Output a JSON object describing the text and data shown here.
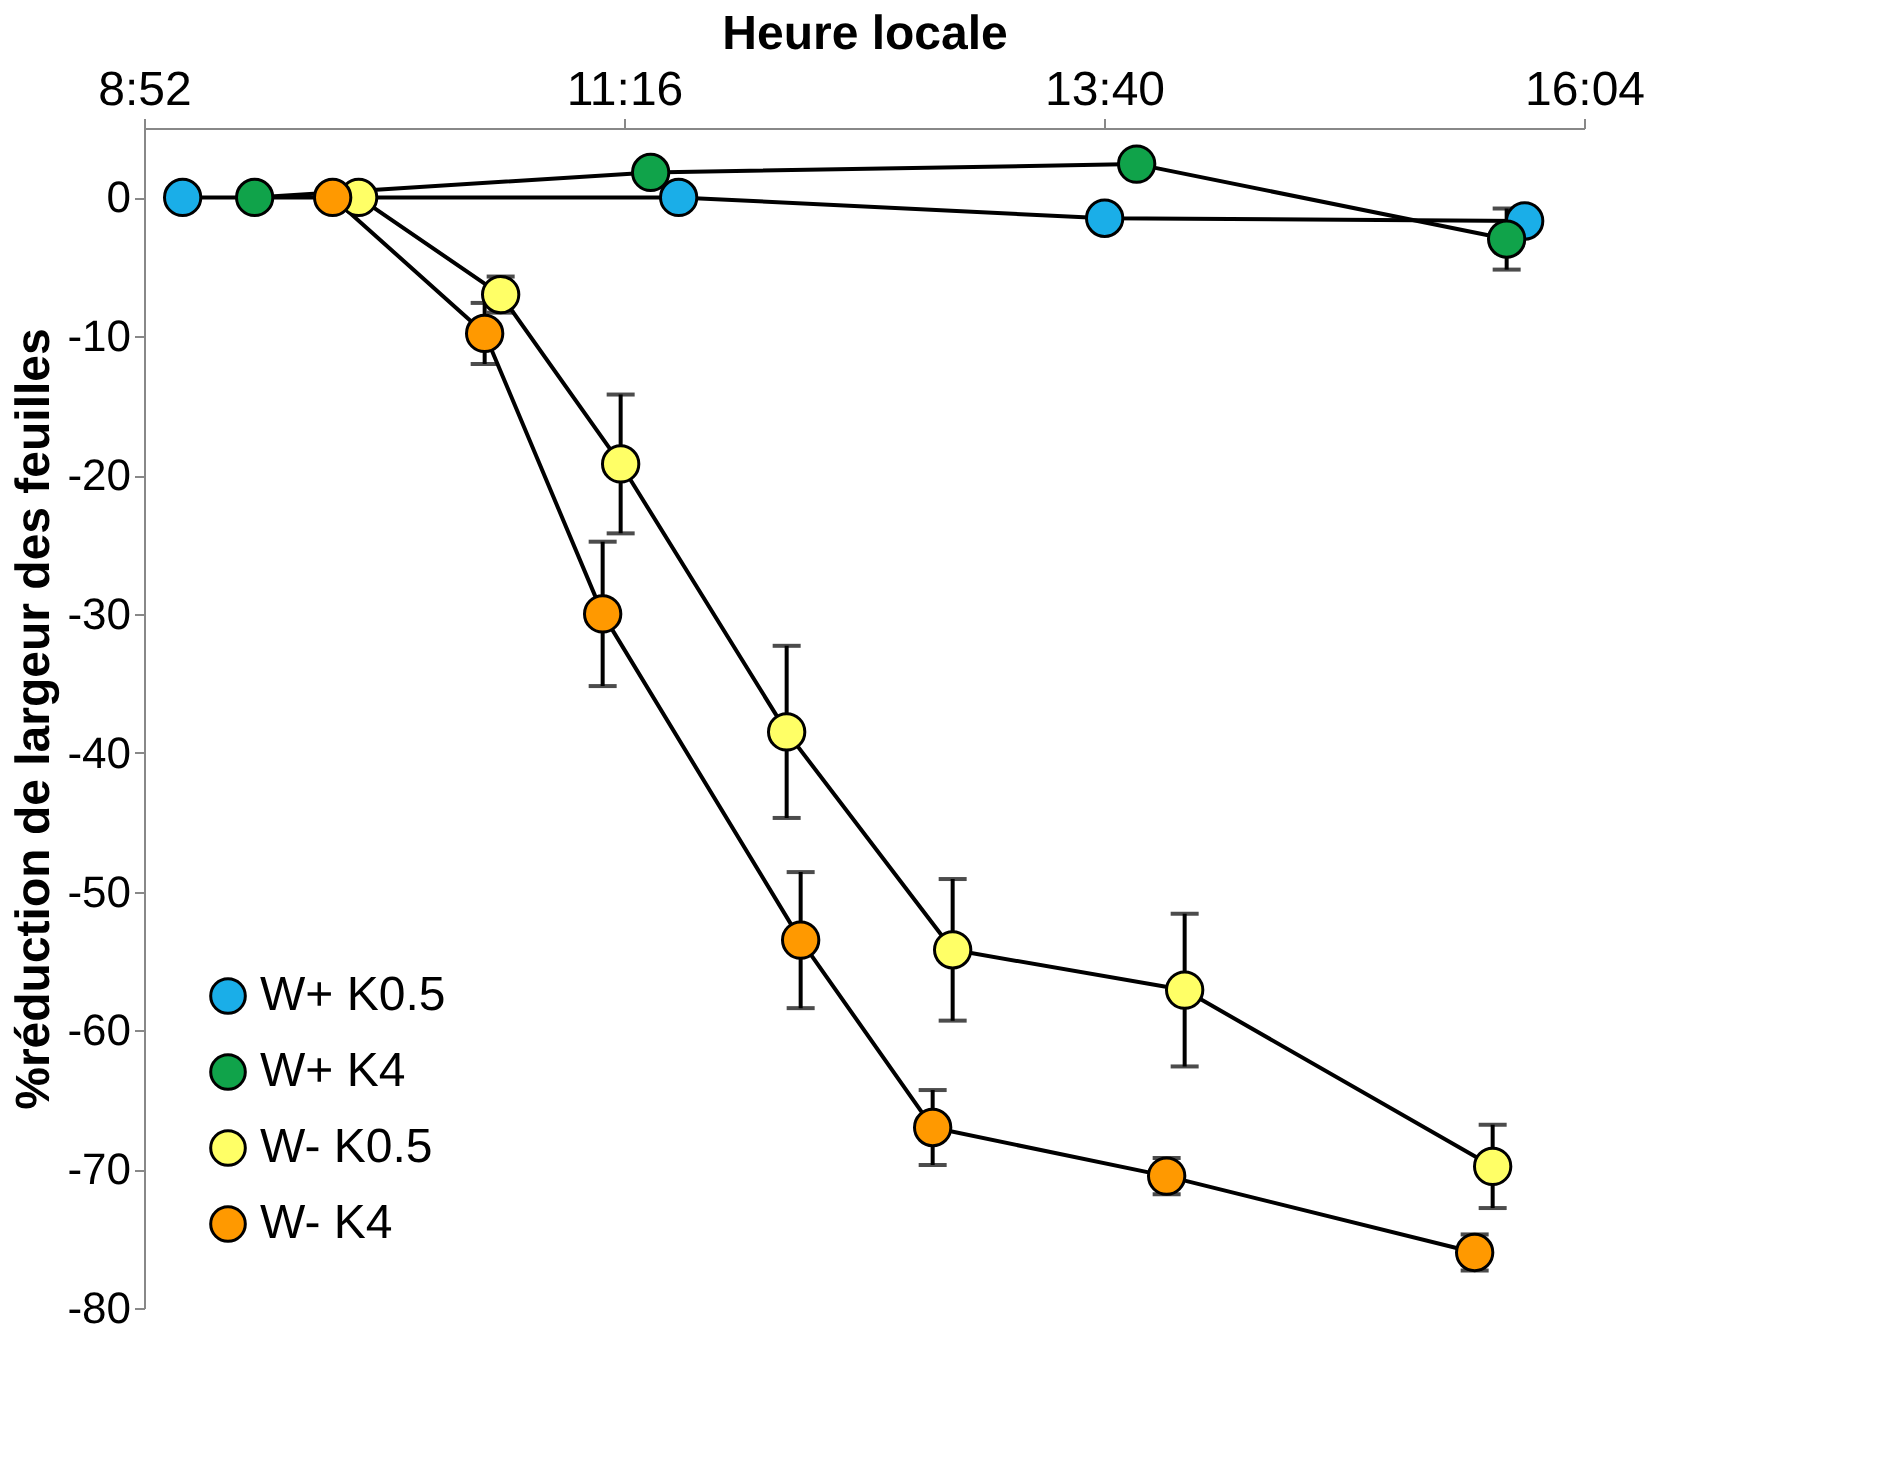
{
  "chart_data": {
    "type": "line",
    "xlabel": "Heure locale",
    "ylabel": "%réduction de largeur des feuilles",
    "xlim": [
      8.8667,
      16.0667
    ],
    "xticks": [
      {
        "value": 8.8667,
        "label": "8:52"
      },
      {
        "value": 11.2667,
        "label": "11:16"
      },
      {
        "value": 13.6667,
        "label": "13:40"
      },
      {
        "value": 16.0667,
        "label": "16:04"
      }
    ],
    "ylim": [
      -80,
      5
    ],
    "yticks": [
      0,
      -10,
      -20,
      -30,
      -40,
      -50,
      -60,
      -70,
      -80
    ],
    "grid": false,
    "legend": "bottom left",
    "marker": "circle",
    "line_style": "solid",
    "series": [
      {
        "name": "W+ K0.5",
        "color": "#1aaee8",
        "x": [
          9.06,
          11.54,
          13.67,
          15.77
        ],
        "values": [
          0,
          0,
          -1.5,
          -1.7
        ]
      },
      {
        "name": "W+ K4",
        "color": "#10a34a",
        "x": [
          9.42,
          11.4,
          13.83,
          15.68
        ],
        "values": [
          0,
          1.8,
          2.4,
          -3.0
        ],
        "errors": [
          null,
          null,
          null,
          2.2
        ]
      },
      {
        "name": "W- K0.5",
        "color": "#ffff66",
        "x": [
          9.94,
          10.65,
          11.25,
          12.08,
          12.91,
          14.07,
          15.61
        ],
        "values": [
          0,
          -7,
          -19.2,
          -38.5,
          -54.2,
          -57.1,
          -69.8
        ],
        "errors": [
          null,
          1.3,
          5,
          6.2,
          5.1,
          5.5,
          3
        ]
      },
      {
        "name": "W- K4",
        "color": "#ff9900",
        "x": [
          9.81,
          10.57,
          11.16,
          12.15,
          12.81,
          13.98,
          15.52
        ],
        "values": [
          0,
          -9.8,
          -30,
          -53.5,
          -67,
          -70.5,
          -76
        ],
        "errors": [
          null,
          2.2,
          5.2,
          4.9,
          2.7,
          1.3,
          1.3
        ]
      }
    ]
  }
}
